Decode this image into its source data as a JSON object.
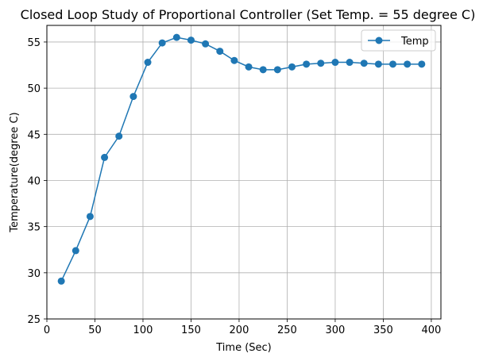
{
  "chart_data": {
    "type": "line",
    "title": "Closed Loop Study of Proportional Controller (Set Temp. = 55 degree C)",
    "xlabel": "Time (Sec)",
    "ylabel": "Temperature(degree C)",
    "xlim": [
      0,
      410
    ],
    "ylim": [
      25,
      56.8
    ],
    "xticks": [
      0,
      50,
      100,
      150,
      200,
      250,
      300,
      350,
      400
    ],
    "yticks": [
      25,
      30,
      35,
      40,
      45,
      50,
      55
    ],
    "grid": true,
    "legend_position": "top-right",
    "series": [
      {
        "name": "Temp",
        "color": "#1f77b4",
        "marker": "circle",
        "x": [
          15,
          30,
          45,
          60,
          75,
          90,
          105,
          120,
          135,
          150,
          165,
          180,
          195,
          210,
          225,
          240,
          255,
          270,
          285,
          300,
          315,
          330,
          345,
          360,
          375,
          390
        ],
        "y": [
          29.1,
          32.4,
          36.1,
          42.5,
          44.8,
          49.1,
          52.8,
          54.9,
          55.5,
          55.2,
          54.8,
          54.0,
          53.0,
          52.3,
          52.0,
          52.0,
          52.3,
          52.6,
          52.7,
          52.8,
          52.8,
          52.7,
          52.6,
          52.6,
          52.6,
          52.6
        ]
      }
    ]
  }
}
